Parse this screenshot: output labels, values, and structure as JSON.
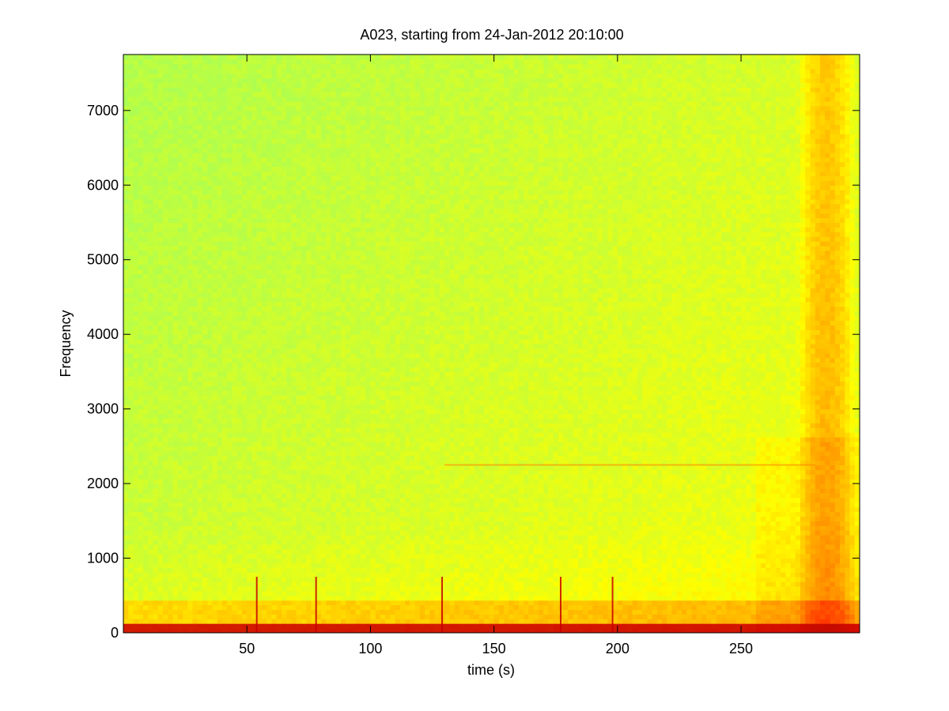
{
  "chart_data": {
    "type": "heatmap",
    "title": "A023, starting from 24-Jan-2012 20:10:00",
    "xlabel": "time (s)",
    "ylabel": "Frequency",
    "xlim": [
      0,
      298
    ],
    "ylim": [
      0,
      7750
    ],
    "x_ticks": [
      50,
      100,
      150,
      200,
      250
    ],
    "y_ticks": [
      0,
      1000,
      2000,
      3000,
      4000,
      5000,
      6000,
      7000
    ],
    "colormap": "jet",
    "colors": {
      "low": "#7fffa0",
      "mid": "#ffff00",
      "high": "#ff8000",
      "peak": "#c80000"
    },
    "features": {
      "low_frequency_band": {
        "freq_max": 450,
        "level": "high"
      },
      "broadband_event": {
        "time_range": [
          277,
          292
        ],
        "freq_range": [
          0,
          7750
        ],
        "level": "high"
      },
      "narrow_band_line": {
        "frequency": 2250,
        "time_range": [
          130,
          280
        ]
      },
      "transient_spikes_s": [
        54,
        78,
        129,
        177,
        198
      ]
    }
  }
}
